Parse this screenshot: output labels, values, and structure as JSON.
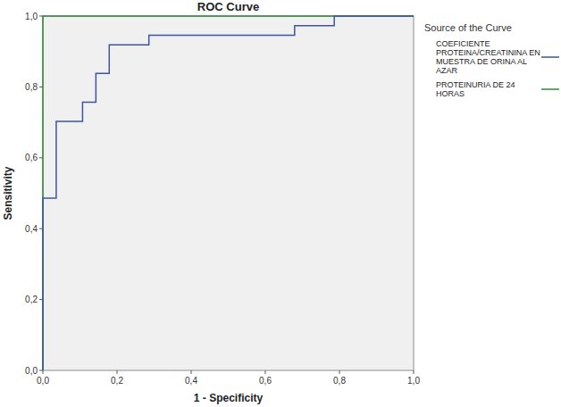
{
  "chart_data": {
    "type": "line",
    "title": "ROC Curve",
    "x_label": "1 - Specificity",
    "y_label": "Sensitivity",
    "legend_title": "Source of the Curve",
    "legend": "right",
    "grid": false,
    "line_style": "step",
    "xlim": [
      0,
      1
    ],
    "ylim": [
      0,
      1
    ],
    "xticks": [
      {
        "value": 0,
        "label": "0,0"
      },
      {
        "value": 0.2,
        "label": "0,2"
      },
      {
        "value": 0.4,
        "label": "0,4"
      },
      {
        "value": 0.6,
        "label": "0,6"
      },
      {
        "value": 0.8,
        "label": "0,8"
      },
      {
        "value": 1,
        "label": "1,0"
      }
    ],
    "yticks": [
      {
        "value": 0,
        "label": "0,0"
      },
      {
        "value": 0.2,
        "label": "0,2"
      },
      {
        "value": 0.4,
        "label": "0,4"
      },
      {
        "value": 0.6,
        "label": "0,6"
      },
      {
        "value": 0.8,
        "label": "0,8"
      },
      {
        "value": 1,
        "label": "1,0"
      }
    ],
    "series": [
      {
        "name": "COEFICIENTE PROTEINA/CREATININA EN MUESTRA DE ORINA AL AZAR",
        "color": "#3d55a3",
        "x": [
          0,
          0,
          0.036,
          0.036,
          0.107,
          0.107,
          0.143,
          0.143,
          0.179,
          0.179,
          0.286,
          0.286,
          0.679,
          0.679,
          0.786,
          0.786,
          1
        ],
        "values": [
          0,
          0.486,
          0.486,
          0.703,
          0.703,
          0.757,
          0.757,
          0.838,
          0.838,
          0.919,
          0.919,
          0.946,
          0.946,
          0.973,
          0.973,
          1,
          1
        ]
      },
      {
        "name": "PROTEINURIA DE 24 HORAS",
        "color": "#2e8b3a",
        "x": [
          0,
          0,
          1
        ],
        "values": [
          0,
          1,
          1
        ]
      }
    ]
  }
}
